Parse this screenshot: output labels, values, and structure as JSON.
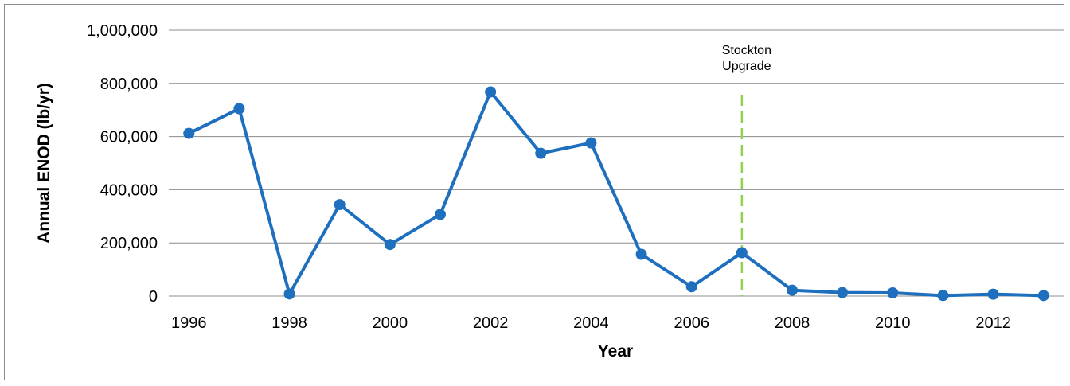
{
  "chart_data": {
    "type": "line",
    "xlabel": "Year",
    "ylabel": "Annual ENOD (lb/yr)",
    "xlim": [
      1995.6,
      2013.4
    ],
    "ylim": [
      0,
      1000000
    ],
    "x_ticks": [
      1996,
      1998,
      2000,
      2002,
      2004,
      2006,
      2008,
      2010,
      2012
    ],
    "y_ticks": [
      0,
      200000,
      400000,
      600000,
      800000,
      1000000
    ],
    "y_tick_labels": [
      "0",
      "200,000",
      "400,000",
      "600,000",
      "800,000",
      "1,000,000"
    ],
    "grid": "horizontal",
    "legend": "none",
    "series": [
      {
        "color": "#1f6fbf",
        "x": [
          1996,
          1997,
          1998,
          1999,
          2000,
          2001,
          2002,
          2003,
          2004,
          2005,
          2006,
          2007,
          2008,
          2009,
          2010,
          2011,
          2012,
          2013
        ],
        "y": [
          612000,
          705000,
          8000,
          344000,
          194000,
          307000,
          768000,
          537000,
          576000,
          157000,
          35000,
          163000,
          22000,
          13000,
          12000,
          2000,
          7000,
          2000
        ]
      }
    ],
    "annotations": [
      {
        "x": 2007,
        "lines": [
          "Stockton",
          "Upgrade"
        ],
        "line_color": "#92d050",
        "line_style": "dashed"
      }
    ]
  }
}
